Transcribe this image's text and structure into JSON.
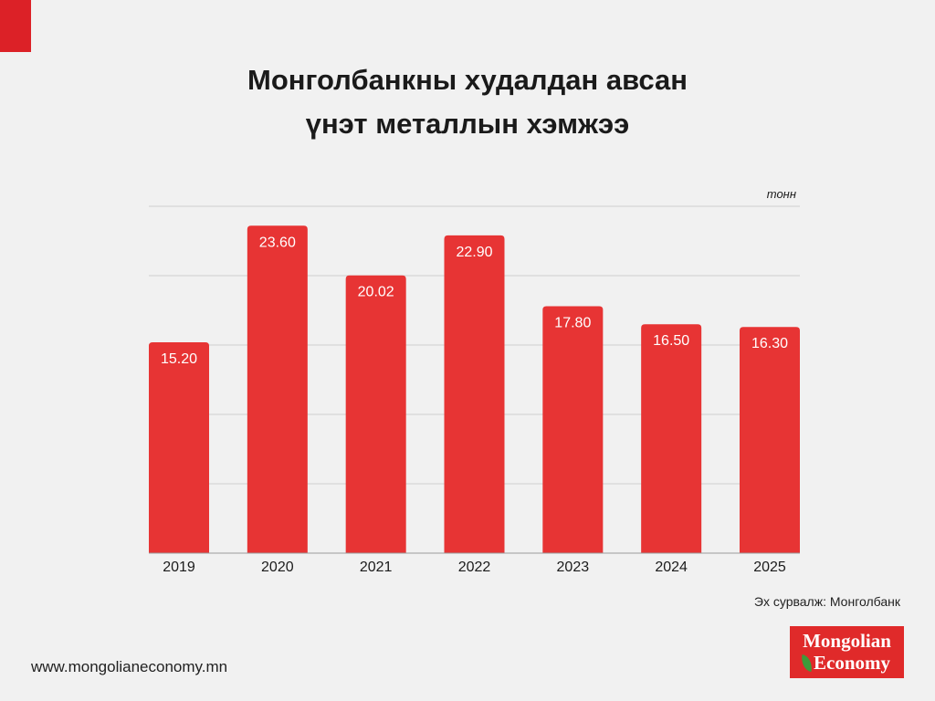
{
  "page": {
    "title_line1": "Монголбанкны худалдан авсан",
    "title_line2": "үнэт металлын хэмжээ",
    "source": "Эх сурвалж: Монголбанк",
    "website": "www.mongolianeconomy.mn",
    "logo_line1": "Mongolian",
    "logo_line2": "Economy"
  },
  "colors": {
    "bar": "#e73434",
    "accent": "#dc2127",
    "grid": "#cfcfcf",
    "logo_bg": "#e02a2a"
  },
  "chart_data": {
    "type": "bar",
    "title": "Монголбанкны худалдан авсан үнэт металлын хэмжээ",
    "unit_label": "тонн",
    "categories": [
      "2019",
      "2020",
      "2021",
      "2022",
      "2023",
      "2024",
      "2025"
    ],
    "values": [
      15.2,
      23.6,
      20.02,
      22.9,
      17.8,
      16.5,
      16.3
    ],
    "value_labels": [
      "15.20",
      "23.60",
      "20.02",
      "22.90",
      "17.80",
      "16.50",
      "16.30"
    ],
    "ylim": [
      0,
      25
    ],
    "y_gridlines": [
      5,
      10,
      15,
      20,
      25
    ],
    "grid": true,
    "y_tick_labels": false,
    "legend": false
  }
}
